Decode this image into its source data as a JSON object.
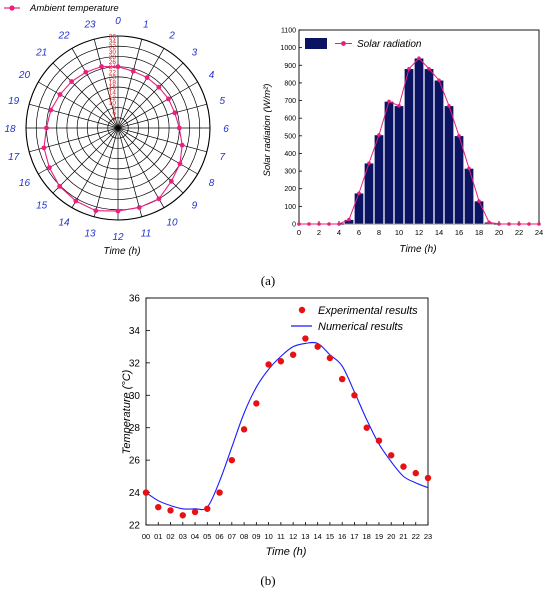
{
  "colors": {
    "polar_series": "#e8207e",
    "polar_radial_labels": "#d42020",
    "polar_hour_labels": "#2233cc",
    "bar_fill": "#0b1463",
    "solar_line": "#e8207e",
    "experimental": "#e81010",
    "numerical": "#1a1aff",
    "axis": "#000000"
  },
  "captions": {
    "a": "(a)",
    "b": "(b)"
  },
  "chart_data": [
    {
      "type": "polar",
      "legend": "Ambient temperature",
      "axis_title": "Time (h)",
      "radial_labels": [
        "4",
        "6",
        "8",
        "10",
        "12",
        "14",
        "16",
        "18",
        "20",
        "22",
        "24",
        "26",
        "28",
        "30",
        "32",
        "34",
        "36"
      ],
      "radial_range": [
        0,
        36
      ],
      "hour_labels": [
        "0",
        "1",
        "2",
        "3",
        "4",
        "5",
        "6",
        "7",
        "8",
        "9",
        "10",
        "11",
        "12",
        "13",
        "14",
        "15",
        "16",
        "17",
        "18",
        "19",
        "20",
        "21",
        "22",
        "23"
      ],
      "hours": [
        0,
        1,
        2,
        3,
        4,
        5,
        6,
        7,
        8,
        9,
        10,
        11,
        12,
        13,
        14,
        15,
        16,
        17,
        18,
        19,
        20,
        21,
        22,
        23
      ],
      "values": [
        24,
        23,
        22.8,
        22.6,
        22.8,
        23,
        24,
        26,
        28,
        29.5,
        32,
        32.2,
        32.5,
        33.5,
        33,
        32.3,
        31,
        30,
        28,
        27.2,
        26.2,
        25.7,
        25.2,
        24.9
      ]
    },
    {
      "type": "bar",
      "legend": "Solar radiation",
      "xlabel": "Time (h)",
      "ylabel": "Solar radiation (W/m²)",
      "xlim": [
        0,
        24
      ],
      "ylim": [
        0,
        1100
      ],
      "x_ticks": [
        "0",
        "2",
        "4",
        "6",
        "8",
        "10",
        "12",
        "14",
        "16",
        "18",
        "20",
        "22",
        "24"
      ],
      "y_ticks": [
        "0",
        "100",
        "200",
        "300",
        "400",
        "500",
        "600",
        "700",
        "800",
        "900",
        "1000",
        "1100"
      ],
      "x": [
        0,
        1,
        2,
        3,
        4,
        5,
        6,
        7,
        8,
        9,
        10,
        11,
        12,
        13,
        14,
        15,
        16,
        17,
        18,
        19,
        20,
        21,
        22,
        23,
        24
      ],
      "values": [
        0,
        0,
        0,
        0,
        0,
        25,
        175,
        345,
        505,
        695,
        670,
        880,
        940,
        880,
        815,
        670,
        500,
        315,
        130,
        10,
        0,
        0,
        0,
        0,
        0
      ]
    },
    {
      "type": "line",
      "xlabel": "Time (h)",
      "ylabel": "Temperature (°C)",
      "xlim": [
        0,
        23
      ],
      "ylim": [
        22,
        36
      ],
      "x_ticks": [
        "00",
        "01",
        "02",
        "03",
        "04",
        "05",
        "06",
        "07",
        "08",
        "09",
        "10",
        "11",
        "12",
        "13",
        "14",
        "15",
        "16",
        "17",
        "18",
        "19",
        "20",
        "21",
        "22",
        "23"
      ],
      "y_ticks": [
        "22",
        "24",
        "26",
        "28",
        "30",
        "32",
        "34",
        "36"
      ],
      "series": [
        {
          "name": "Experimental results",
          "style": "points",
          "x": [
            0,
            1,
            2,
            3,
            4,
            5,
            6,
            7,
            8,
            9,
            10,
            11,
            12,
            13,
            14,
            15,
            16,
            17,
            18,
            19,
            20,
            21,
            22,
            23
          ],
          "values": [
            24,
            23.1,
            22.9,
            22.6,
            22.8,
            23,
            24,
            26,
            27.9,
            29.5,
            31.9,
            32.1,
            32.5,
            33.5,
            33.0,
            32.3,
            31,
            30,
            28,
            27.2,
            26.3,
            25.6,
            25.2,
            24.9
          ]
        },
        {
          "name": "Numerical results",
          "style": "line",
          "x": [
            0,
            1,
            2,
            3,
            4,
            5,
            6,
            7,
            8,
            9,
            10,
            11,
            12,
            13,
            14,
            15,
            16,
            17,
            18,
            19,
            20,
            21,
            22,
            23
          ],
          "values": [
            24,
            23.5,
            23.2,
            23,
            23.0,
            23.1,
            24.7,
            26.8,
            28.9,
            30.5,
            31.6,
            32.4,
            33.0,
            33.2,
            33.2,
            32.5,
            31.8,
            30.2,
            28.5,
            27.0,
            25.9,
            25.0,
            24.6,
            24.3
          ]
        }
      ]
    }
  ]
}
